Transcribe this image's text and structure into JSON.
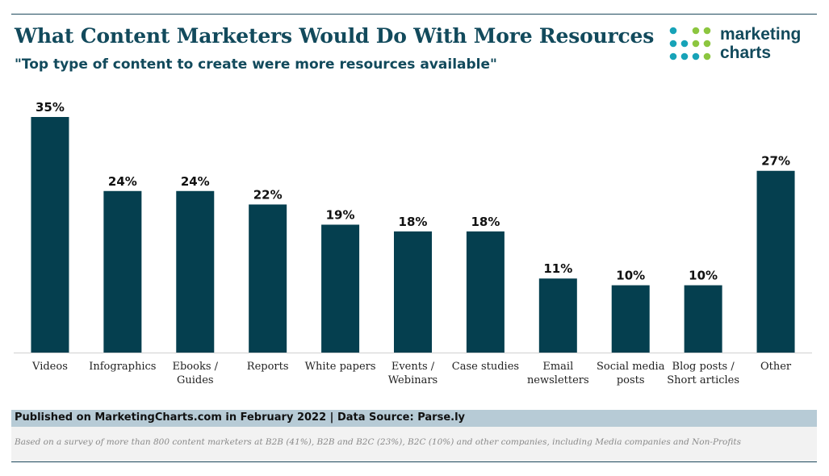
{
  "header": {
    "title": "What Content Marketers Would Do With More Resources",
    "subtitle": "\"Top type of content to create were more resources available\""
  },
  "logo": {
    "line1": "marketing",
    "line2": "charts",
    "brand_color": "#124a5c",
    "dot_colors": [
      "#17a3b8",
      "#8cc63f"
    ]
  },
  "chart_data": {
    "type": "bar",
    "title": "What Content Marketers Would Do With More Resources",
    "subtitle": "\"Top type of content to create were more resources available\"",
    "categories": [
      [
        "Videos"
      ],
      [
        "Infographics"
      ],
      [
        "Ebooks /",
        "Guides"
      ],
      [
        "Reports"
      ],
      [
        "White papers"
      ],
      [
        "Events /",
        "Webinars"
      ],
      [
        "Case studies"
      ],
      [
        "Email",
        "newsletters"
      ],
      [
        "Social media",
        "posts"
      ],
      [
        "Blog posts /",
        "Short articles"
      ],
      [
        "Other"
      ]
    ],
    "values": [
      35,
      24,
      24,
      22,
      19,
      18,
      18,
      11,
      10,
      10,
      27
    ],
    "value_labels": [
      "35%",
      "24%",
      "24%",
      "22%",
      "19%",
      "18%",
      "18%",
      "11%",
      "10%",
      "10%",
      "27%"
    ],
    "unit": "%",
    "ylim": [
      0,
      35
    ],
    "bar_color": "#053f4f",
    "grid": false,
    "xlabel": "",
    "ylabel": ""
  },
  "footer": {
    "published": "Published on MarketingCharts.com in February 2022 | Data Source: Parse.ly",
    "note": "Based on a survey of more than 800 content marketers at B2B (41%), B2B and B2C (23%), B2C (10%) and other companies, including Media companies and Non-Profits"
  }
}
